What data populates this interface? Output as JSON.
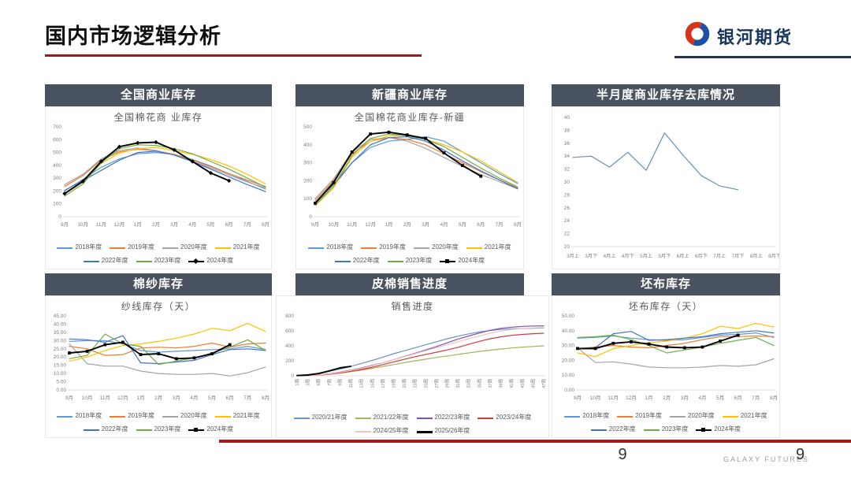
{
  "title": "国内市场逻辑分析",
  "logo": {
    "text": "银河期货",
    "red": "#d6341c",
    "blue": "#1e50a2"
  },
  "footer": {
    "page_center": "9",
    "brand": "GALAXY FUTURES",
    "page_right": "9"
  },
  "panels": [
    {
      "header": "全国商业库存"
    },
    {
      "header": "新疆商业库存"
    },
    {
      "header": "半月度商业库存去库情况"
    },
    {
      "header": "棉纱库存"
    },
    {
      "header": "皮棉销售进度"
    },
    {
      "header": "坯布库存"
    }
  ],
  "chart_data": [
    {
      "type": "line",
      "title": "全国棉花商 业库存",
      "categories": [
        "9月",
        "10月",
        "11月",
        "12月",
        "1月",
        "2月",
        "3月",
        "4月",
        "5月",
        "6月",
        "7月",
        "8月"
      ],
      "ylim": [
        0,
        700
      ],
      "ytick": 100,
      "decimals": 0,
      "grid": false,
      "legend_position": "bottom",
      "series": [
        {
          "name": "2018年度",
          "color": "#5B9BD5",
          "values": [
            200,
            290,
            385,
            450,
            490,
            500,
            485,
            445,
            395,
            335,
            275,
            215
          ]
        },
        {
          "name": "2019年度",
          "color": "#ED7D31",
          "values": [
            235,
            320,
            440,
            505,
            525,
            515,
            485,
            440,
            390,
            335,
            285,
            235
          ]
        },
        {
          "name": "2020年度",
          "color": "#A5A5A5",
          "values": [
            250,
            330,
            450,
            515,
            535,
            515,
            480,
            430,
            380,
            325,
            270,
            225
          ]
        },
        {
          "name": "2021年度",
          "color": "#FFC000",
          "values": [
            175,
            270,
            415,
            495,
            530,
            540,
            515,
            485,
            445,
            395,
            330,
            255
          ]
        },
        {
          "name": "2022年度",
          "color": "#4472C4",
          "values": [
            205,
            280,
            360,
            440,
            500,
            510,
            480,
            430,
            370,
            310,
            250,
            195
          ]
        },
        {
          "name": "2023年度",
          "color": "#70AD47",
          "values": [
            160,
            255,
            420,
            530,
            560,
            555,
            530,
            490,
            430,
            370,
            300,
            230
          ]
        },
        {
          "name": "2024年度",
          "color": "#000000",
          "marker": "diamond",
          "values": [
            180,
            275,
            430,
            545,
            575,
            580,
            520,
            430,
            340,
            280
          ]
        }
      ]
    },
    {
      "type": "line",
      "title": "全国棉花商业库存-新疆",
      "categories": [
        "9月",
        "10月",
        "11月",
        "12月",
        "1月",
        "2月",
        "3月",
        "4月",
        "5月",
        "6月",
        "7月",
        "8月"
      ],
      "ylim": [
        0,
        500
      ],
      "ytick": 100,
      "decimals": 0,
      "grid": false,
      "legend_position": "bottom",
      "series": [
        {
          "name": "2018年度",
          "color": "#5B9BD5",
          "values": [
            70,
            170,
            300,
            385,
            420,
            430,
            445,
            420,
            360,
            300,
            240,
            185
          ]
        },
        {
          "name": "2019年度",
          "color": "#ED7D31",
          "values": [
            90,
            200,
            350,
            420,
            440,
            430,
            400,
            350,
            300,
            250,
            205,
            160
          ]
        },
        {
          "name": "2020年度",
          "color": "#A5A5A5",
          "values": [
            100,
            210,
            360,
            430,
            440,
            420,
            380,
            330,
            280,
            235,
            195,
            155
          ]
        },
        {
          "name": "2021年度",
          "color": "#FFC000",
          "values": [
            60,
            160,
            330,
            420,
            450,
            455,
            430,
            400,
            360,
            310,
            250,
            190
          ]
        },
        {
          "name": "2022年度",
          "color": "#4472C4",
          "values": [
            80,
            180,
            300,
            400,
            440,
            445,
            420,
            370,
            310,
            255,
            205,
            155
          ]
        },
        {
          "name": "2023年度",
          "color": "#70AD47",
          "values": [
            65,
            170,
            340,
            435,
            460,
            450,
            430,
            390,
            330,
            270,
            215,
            165
          ]
        },
        {
          "name": "2024年度",
          "color": "#000000",
          "marker": "square",
          "values": [
            75,
            190,
            360,
            460,
            470,
            455,
            435,
            355,
            285,
            225
          ]
        }
      ]
    },
    {
      "type": "line",
      "title": "",
      "categories": [
        "3月上",
        "3月下",
        "4月上",
        "4月下",
        "5月上",
        "5月下",
        "6月上",
        "6月下",
        "7月上",
        "7月下",
        "8月上",
        "8月下"
      ],
      "ylim": [
        20,
        40
      ],
      "ytick": 2,
      "decimals": 0,
      "grid": false,
      "legend_position": "none",
      "series": [
        {
          "name": "半月度商业库存去库",
          "color": "#6493B5",
          "values": [
            33.8,
            34,
            32.3,
            34.6,
            31.8,
            37.6,
            34.2,
            31,
            29.4,
            28.8
          ]
        }
      ]
    },
    {
      "type": "line",
      "title": "纱线库存（天）",
      "categories": [
        "9月",
        "10月",
        "11月",
        "12月",
        "1月",
        "2月",
        "3月",
        "4月",
        "5月",
        "6月",
        "7月",
        "8月"
      ],
      "ylim": [
        0,
        45
      ],
      "ytick": 5,
      "decimals": 2,
      "grid": false,
      "legend_position": "bottom",
      "series": [
        {
          "name": "2018年度",
          "color": "#5B9BD5",
          "values": [
            29.5,
            30,
            30,
            28,
            24,
            23,
            23.5,
            24,
            24.5,
            25,
            26.5,
            24.5
          ]
        },
        {
          "name": "2019年度",
          "color": "#ED7D31",
          "values": [
            26.5,
            25,
            21,
            21.5,
            25.5,
            26,
            25.5,
            26.5,
            28.5,
            26,
            28,
            28.5
          ]
        },
        {
          "name": "2020年度",
          "color": "#A5A5A5",
          "values": [
            28,
            16,
            14.5,
            14.5,
            11.5,
            10,
            9.5,
            9.5,
            10,
            8.5,
            10.5,
            14
          ]
        },
        {
          "name": "2021年度",
          "color": "#FFC000",
          "values": [
            17.5,
            20,
            24,
            27,
            28,
            29.5,
            31.5,
            34,
            37.5,
            36,
            40.5,
            35.5
          ]
        },
        {
          "name": "2022年度",
          "color": "#4472C4",
          "values": [
            31,
            30.5,
            29,
            33,
            16.5,
            16,
            17,
            18,
            21.5,
            24.5,
            25,
            24
          ]
        },
        {
          "name": "2023年度",
          "color": "#70AD47",
          "values": [
            19,
            21,
            34,
            28,
            26.5,
            15.5,
            17.5,
            19.5,
            22.5,
            26,
            30.5,
            24
          ]
        },
        {
          "name": "2024年度",
          "color": "#000000",
          "marker": "square",
          "values": [
            22.5,
            23.5,
            27.5,
            29,
            21.5,
            22,
            19,
            19.5,
            22,
            27.5
          ]
        }
      ]
    },
    {
      "type": "line",
      "title": "销售进度",
      "categories": [
        "1周",
        "3周",
        "5周",
        "7周",
        "9周",
        "11周",
        "13周",
        "15周",
        "17周",
        "19周",
        "21周",
        "23周",
        "25周",
        "27周",
        "29周",
        "31周",
        "33周",
        "35周",
        "37周",
        "39周",
        "41周",
        "43周",
        "45周",
        "47周"
      ],
      "ylim": [
        0,
        800
      ],
      "ytick": 200,
      "decimals": 0,
      "grid": false,
      "legend_position": "bottom",
      "series": [
        {
          "name": "2020/21年度",
          "color": "#6A94C4",
          "values": [
            5,
            15,
            35,
            60,
            90,
            125,
            165,
            205,
            250,
            295,
            335,
            375,
            415,
            455,
            495,
            530,
            560,
            585,
            605,
            620,
            628,
            632,
            636,
            640
          ]
        },
        {
          "name": "2021/22年度",
          "color": "#A6B457",
          "values": [
            2,
            5,
            10,
            20,
            35,
            55,
            75,
            100,
            125,
            150,
            175,
            200,
            222,
            245,
            265,
            285,
            305,
            325,
            342,
            358,
            372,
            383,
            392,
            400
          ]
        },
        {
          "name": "2022/23年度",
          "color": "#7D52A8",
          "values": [
            2,
            6,
            14,
            28,
            48,
            75,
            105,
            140,
            175,
            215,
            258,
            300,
            345,
            390,
            440,
            490,
            532,
            570,
            608,
            635,
            650,
            660,
            665,
            667
          ]
        },
        {
          "name": "2023/24年度",
          "color": "#CC3B3B",
          "values": [
            2,
            5,
            10,
            20,
            38,
            60,
            85,
            115,
            150,
            185,
            220,
            255,
            285,
            315,
            345,
            380,
            420,
            460,
            495,
            520,
            540,
            553,
            562,
            568
          ]
        },
        {
          "name": "2024/25年度",
          "color": "#F0C3BF",
          "values": [
            2,
            5,
            12,
            25,
            45,
            70,
            100,
            135,
            175,
            215,
            255,
            295,
            335,
            375,
            415,
            455,
            495,
            532,
            568,
            598,
            618,
            632,
            640,
            645
          ]
        },
        {
          "name": "2025/26年度",
          "color": "#000000",
          "marker": "none_thick",
          "values": [
            3,
            10,
            30,
            65,
            105,
            125
          ]
        }
      ]
    },
    {
      "type": "line",
      "title": "坯布库存（天）",
      "categories": [
        "9月",
        "10月",
        "11月",
        "12月",
        "1月",
        "2月",
        "3月",
        "4月",
        "5月",
        "6月",
        "7月",
        "8月"
      ],
      "ylim": [
        0,
        50
      ],
      "ytick": 10,
      "decimals": 2,
      "grid": false,
      "legend_position": "bottom",
      "series": [
        {
          "name": "2018年度",
          "color": "#5B9BD5",
          "values": [
            35,
            35.5,
            36.5,
            35,
            34,
            33.5,
            34,
            35.5,
            37,
            37.5,
            38.5,
            35.5
          ]
        },
        {
          "name": "2019年度",
          "color": "#ED7D31",
          "values": [
            28,
            29,
            30,
            29,
            28.5,
            30,
            31.5,
            34,
            36,
            36,
            36.5,
            36
          ]
        },
        {
          "name": "2020年度",
          "color": "#A5A5A5",
          "values": [
            28.5,
            18.5,
            19,
            17.5,
            15.5,
            15,
            15,
            15.5,
            16.5,
            16,
            17,
            21
          ]
        },
        {
          "name": "2021年度",
          "color": "#FFC000",
          "values": [
            25,
            22.5,
            28,
            30,
            32,
            33,
            35,
            38,
            43,
            41.5,
            45,
            42.5
          ]
        },
        {
          "name": "2022年度",
          "color": "#4472C4",
          "values": [
            28,
            28.5,
            38,
            39.5,
            33.5,
            34,
            35,
            36,
            38,
            39,
            40,
            38.5
          ]
        },
        {
          "name": "2023年度",
          "color": "#70AD47",
          "values": [
            35.5,
            36,
            37,
            34,
            30,
            25,
            27,
            29,
            31.5,
            33.5,
            35.5,
            30
          ]
        },
        {
          "name": "2024年度",
          "color": "#000000",
          "marker": "square",
          "values": [
            28,
            28,
            31.5,
            32.5,
            31,
            29,
            28.5,
            29,
            33,
            37
          ]
        }
      ]
    }
  ]
}
